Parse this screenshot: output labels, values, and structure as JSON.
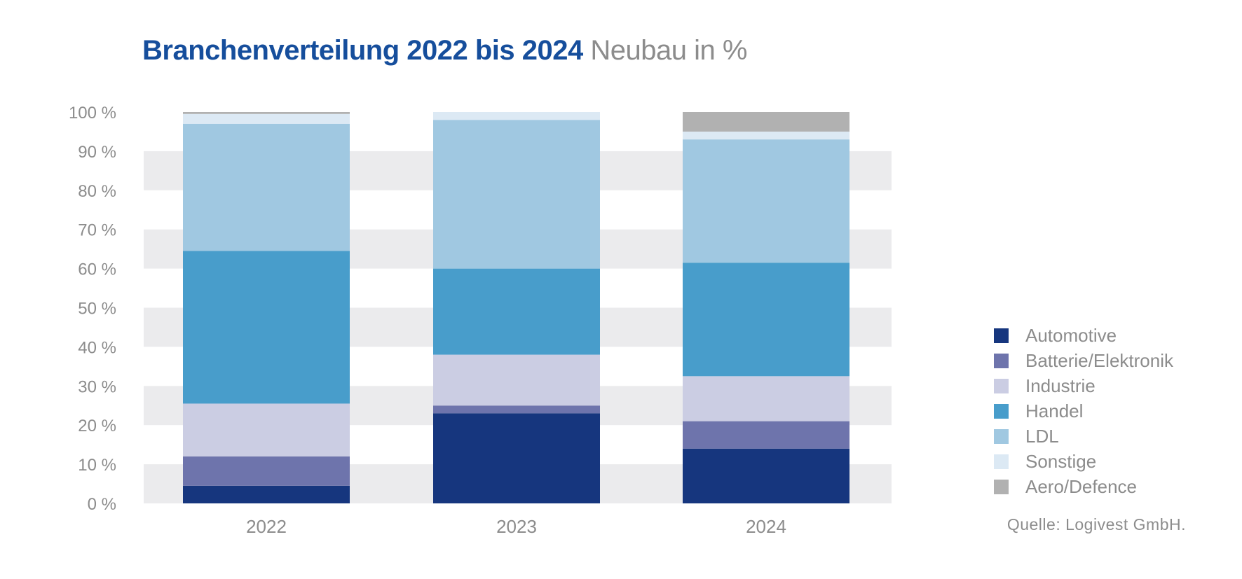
{
  "title": {
    "main": "Branchenverteilung 2022 bis 2024",
    "sub": "Neubau in %"
  },
  "source": "Quelle: Logivest GmbH.",
  "chart_data": {
    "type": "bar",
    "stacked": true,
    "categories": [
      "2022",
      "2023",
      "2024"
    ],
    "series": [
      {
        "name": "Automotive",
        "color": "#16367e",
        "values": [
          4.5,
          23,
          14
        ]
      },
      {
        "name": "Batterie/Elektronik",
        "color": "#6e74ac",
        "values": [
          7.5,
          2,
          7
        ]
      },
      {
        "name": "Industrie",
        "color": "#cbcde3",
        "values": [
          13.5,
          13,
          11.5
        ]
      },
      {
        "name": "Handel",
        "color": "#489dcb",
        "values": [
          39,
          22,
          29
        ]
      },
      {
        "name": "LDL",
        "color": "#a0c8e1",
        "values": [
          32.5,
          38,
          31.5
        ]
      },
      {
        "name": "Sonstige",
        "color": "#dce9f4",
        "values": [
          2.5,
          2,
          2
        ]
      },
      {
        "name": "Aero/Defence",
        "color": "#b1b1b1",
        "values": [
          0.5,
          0,
          5
        ]
      }
    ],
    "y_ticks": [
      "0 %",
      "10 %",
      "20 %",
      "30 %",
      "40 %",
      "50 %",
      "60 %",
      "70 %",
      "80 %",
      "90 %",
      "100 %"
    ],
    "ylim": [
      0,
      100
    ],
    "grid": "alternating horizontal bands",
    "legend_position": "right"
  }
}
